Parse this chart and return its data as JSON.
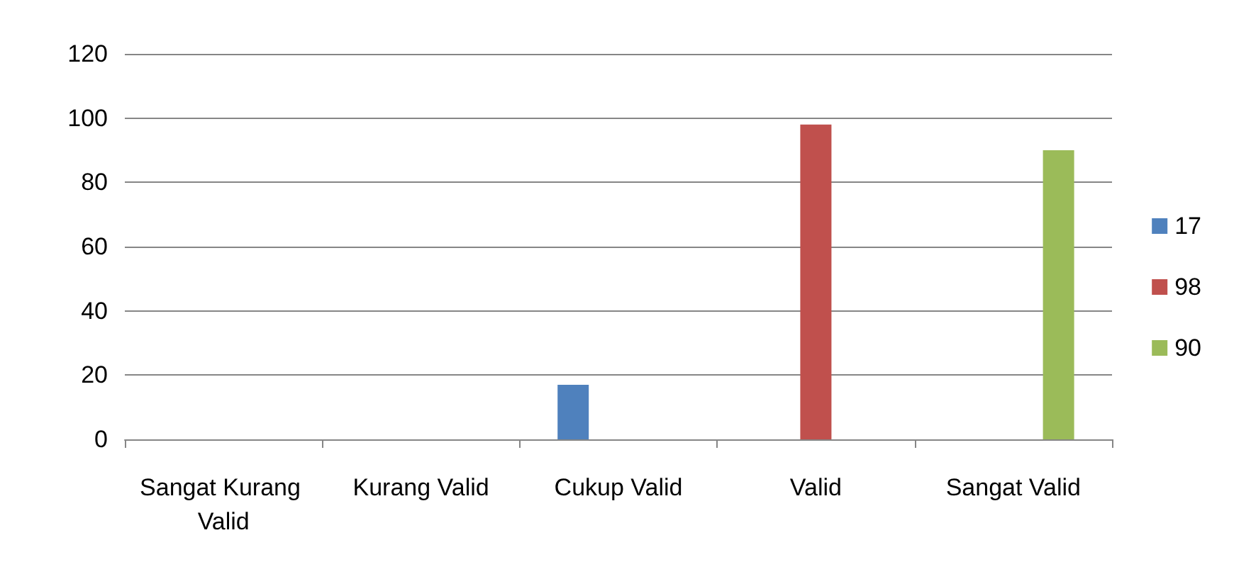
{
  "chart_data": {
    "type": "bar",
    "categories": [
      "Sangat Kurang Valid",
      "Kurang Valid",
      "Cukup Valid",
      "Valid",
      "Sangat Valid"
    ],
    "series": [
      {
        "name": "17",
        "color": "#4f81bd",
        "values": [
          null,
          null,
          17,
          null,
          null
        ]
      },
      {
        "name": "98",
        "color": "#c0504d",
        "values": [
          null,
          null,
          null,
          98,
          null
        ]
      },
      {
        "name": "90",
        "color": "#9bbb59",
        "values": [
          null,
          null,
          null,
          null,
          90
        ]
      }
    ],
    "ylim": [
      0,
      120
    ],
    "yticks": [
      0,
      20,
      40,
      60,
      80,
      100,
      120
    ],
    "grid": "y",
    "legend": "right"
  }
}
